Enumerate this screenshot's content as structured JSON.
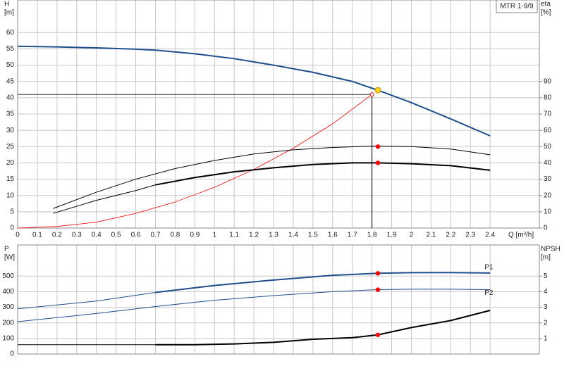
{
  "chart_data": [
    {
      "type": "line",
      "annotation": "MTR 1-9/9",
      "x_label": "Q [m³/h]",
      "y_label": "H",
      "y_unit": "[m]",
      "y2_label": "eta",
      "y2_unit": "[%]",
      "xlim": [
        0,
        2.65
      ],
      "xticks": [
        0,
        0.1,
        0.2,
        0.3,
        0.4,
        0.5,
        0.6,
        0.7,
        0.8,
        0.9,
        1,
        1.1,
        1.2,
        1.3,
        1.4,
        1.5,
        1.6,
        1.7,
        1.8,
        1.9,
        2,
        2.1,
        2.2,
        2.3,
        2.4
      ],
      "ylim": [
        0,
        70
      ],
      "yticks": [
        0,
        5,
        10,
        15,
        20,
        25,
        30,
        35,
        40,
        45,
        50,
        55,
        60
      ],
      "y2lim": [
        0,
        140
      ],
      "y2ticks": [
        0,
        10,
        20,
        30,
        40,
        50,
        60,
        70,
        80,
        90
      ],
      "grid": true,
      "series": [
        {
          "color": "#1f4e8c",
          "width": 2,
          "x": [
            0,
            0.2,
            0.4,
            0.6,
            0.7,
            0.9,
            1.1,
            1.3,
            1.5,
            1.7,
            1.83,
            2.0,
            2.2,
            2.4
          ],
          "values": [
            55.8,
            55.6,
            55.3,
            54.9,
            54.6,
            53.5,
            52,
            50,
            47.8,
            45,
            42.3,
            38.5,
            33.5,
            28.3
          ]
        },
        {
          "color": "#ff0000",
          "width": 0.8,
          "x": [
            0,
            0.2,
            0.4,
            0.6,
            0.8,
            1.0,
            1.2,
            1.4,
            1.6,
            1.8
          ],
          "values": [
            0,
            0.5,
            1.8,
            4.5,
            8,
            12.5,
            18,
            24.5,
            32,
            41
          ]
        },
        {
          "color": "#000000",
          "width": 1,
          "axis": "y2",
          "x": [
            0.18,
            0.4,
            0.6,
            0.8,
            1.0,
            1.2,
            1.4,
            1.6,
            1.8,
            2.0,
            2.2,
            2.4
          ],
          "values": [
            12,
            22,
            30,
            36.5,
            41.5,
            45.5,
            48,
            49.5,
            50.3,
            50,
            48.5,
            45
          ]
        },
        {
          "color": "#000000",
          "width": 1,
          "thick_from": 0.7,
          "axis": "y2",
          "x": [
            0.18,
            0.4,
            0.6,
            0.7,
            0.9,
            1.1,
            1.3,
            1.5,
            1.7,
            1.83,
            2.0,
            2.2,
            2.4
          ],
          "values": [
            9,
            17,
            23,
            26.5,
            31,
            34.5,
            37,
            39,
            40,
            40,
            39.5,
            38.3,
            35.5
          ]
        }
      ],
      "crosshair": {
        "x": 1.8,
        "y": 41
      },
      "duty_point": {
        "x": 1.83,
        "y": 42.3
      },
      "points": [
        {
          "x": 1.83,
          "y": 50,
          "axis": "y2"
        },
        {
          "x": 1.83,
          "y": 40,
          "axis": "y2"
        }
      ]
    },
    {
      "type": "line",
      "y_label": "P",
      "y_unit": "[W]",
      "y2_label": "NPSH",
      "y2_unit": "[m]",
      "xlim": [
        0,
        2.65
      ],
      "xticks": [
        0,
        0.1,
        0.2,
        0.3,
        0.4,
        0.5,
        0.6,
        0.7,
        0.8,
        0.9,
        1,
        1.1,
        1.2,
        1.3,
        1.4,
        1.5,
        1.6,
        1.7,
        1.8,
        1.9,
        2,
        2.1,
        2.2,
        2.3,
        2.4
      ],
      "ylim": [
        0,
        700
      ],
      "yticks": [
        0,
        100,
        200,
        300,
        400,
        500
      ],
      "y2lim": [
        0,
        7
      ],
      "y2ticks": [
        1,
        2,
        3,
        4,
        5
      ],
      "grid": true,
      "series": [
        {
          "name": "P1",
          "color": "#1f4e8c",
          "width": 1,
          "thick_from": 0.7,
          "x": [
            0,
            0.4,
            0.7,
            1.0,
            1.3,
            1.6,
            1.83,
            2.0,
            2.2,
            2.4
          ],
          "values": [
            290,
            340,
            395,
            440,
            475,
            505,
            518,
            522,
            523,
            520
          ]
        },
        {
          "name": "P2",
          "color": "#1f4e8c",
          "width": 1,
          "x": [
            0,
            0.4,
            0.7,
            1.0,
            1.3,
            1.6,
            1.83,
            2.0,
            2.2,
            2.4
          ],
          "values": [
            208,
            260,
            305,
            345,
            375,
            400,
            413,
            416,
            416,
            413
          ]
        },
        {
          "color": "#000000",
          "width": 1,
          "thick_from": 0.7,
          "axis": "y2",
          "x": [
            0,
            0.7,
            0.9,
            1.1,
            1.3,
            1.5,
            1.7,
            1.83,
            2.0,
            2.2,
            2.4
          ],
          "values": [
            0.6,
            0.6,
            0.6,
            0.65,
            0.75,
            0.95,
            1.05,
            1.23,
            1.7,
            2.15,
            2.8
          ]
        }
      ],
      "points": [
        {
          "x": 1.83,
          "y": 518
        },
        {
          "x": 1.83,
          "y": 413
        },
        {
          "x": 1.83,
          "y": 1.23,
          "axis": "y2"
        }
      ]
    }
  ]
}
